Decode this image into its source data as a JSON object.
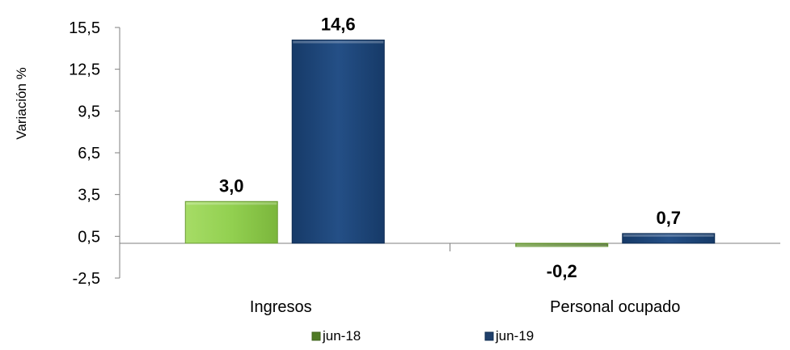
{
  "chart_data": {
    "type": "bar",
    "title": "",
    "ylabel": "Variación  %",
    "xlabel": "",
    "categories": [
      "Ingresos",
      "Personal ocupado"
    ],
    "series": [
      {
        "name": "jun-18",
        "values": [
          3.0,
          -0.2
        ],
        "labels": [
          "3,0",
          "-0,2"
        ],
        "color": "#92d050"
      },
      {
        "name": "jun-19",
        "values": [
          14.6,
          0.7
        ],
        "labels": [
          "14,6",
          "0,7"
        ],
        "color": "#1f497d"
      }
    ],
    "yticks": [
      {
        "value": -2.5,
        "label": "-2,5"
      },
      {
        "value": 0.5,
        "label": "0,5"
      },
      {
        "value": 3.5,
        "label": "3,5"
      },
      {
        "value": 6.5,
        "label": "6,5"
      },
      {
        "value": 9.5,
        "label": "9,5"
      },
      {
        "value": 12.5,
        "label": "12,5"
      },
      {
        "value": 15.5,
        "label": "15,5"
      }
    ],
    "ylim": [
      -2.5,
      15.5
    ],
    "baseline": 0,
    "grid": false,
    "legend_position": "bottom"
  }
}
